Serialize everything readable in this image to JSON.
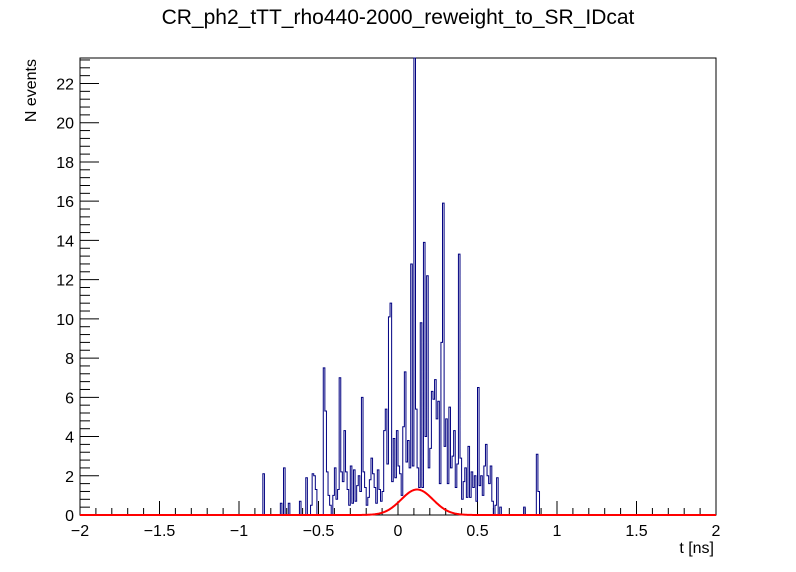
{
  "chart_data": {
    "type": "histogram",
    "title": "CR_ph2_tTT_rho440-2000_reweight_to_SR_IDcat",
    "xlabel": "t [ns]",
    "ylabel": "N events",
    "xlim": [
      -2,
      2
    ],
    "ylim": [
      0,
      23.3
    ],
    "x_ticks": [
      "−2",
      "−1.5",
      "−1",
      "−0.5",
      "0",
      "0.5",
      "1",
      "1.5",
      "2"
    ],
    "y_ticks": [
      "0",
      "2",
      "4",
      "6",
      "8",
      "10",
      "12",
      "14",
      "16",
      "18",
      "20",
      "22"
    ],
    "colors": {
      "histogram": "#000080",
      "fit": "#ff0000"
    },
    "histogram": {
      "name": "",
      "bin_width": 0.01,
      "bins": [
        [
          -0.85,
          2.1
        ],
        [
          -0.74,
          0.6
        ],
        [
          -0.72,
          2.4
        ],
        [
          -0.69,
          0.6
        ],
        [
          -0.62,
          0.7
        ],
        [
          -0.58,
          1.9
        ],
        [
          -0.55,
          0.5
        ],
        [
          -0.54,
          2.1
        ],
        [
          -0.53,
          2.0
        ],
        [
          -0.52,
          1.3
        ],
        [
          -0.47,
          7.5
        ],
        [
          -0.46,
          5.3
        ],
        [
          -0.45,
          2.2
        ],
        [
          -0.44,
          1.0
        ],
        [
          -0.43,
          0.5
        ],
        [
          -0.41,
          1.0
        ],
        [
          -0.4,
          2.4
        ],
        [
          -0.39,
          0.8
        ],
        [
          -0.38,
          1.3
        ],
        [
          -0.37,
          7.0
        ],
        [
          -0.36,
          2.2
        ],
        [
          -0.35,
          1.7
        ],
        [
          -0.34,
          4.3
        ],
        [
          -0.33,
          2.2
        ],
        [
          -0.32,
          1.3
        ],
        [
          -0.31,
          0.5
        ],
        [
          -0.3,
          2.5
        ],
        [
          -0.29,
          0.6
        ],
        [
          -0.28,
          2.3
        ],
        [
          -0.27,
          0.7
        ],
        [
          -0.26,
          1.5
        ],
        [
          -0.25,
          2.0
        ],
        [
          -0.24,
          1.2
        ],
        [
          -0.23,
          6.0
        ],
        [
          -0.22,
          2.2
        ],
        [
          -0.21,
          1.4
        ],
        [
          -0.2,
          0.5
        ],
        [
          -0.19,
          0.9
        ],
        [
          -0.18,
          1.8
        ],
        [
          -0.17,
          2.9
        ],
        [
          -0.16,
          2.1
        ],
        [
          -0.15,
          1.4
        ],
        [
          -0.14,
          0.6
        ],
        [
          -0.13,
          2.3
        ],
        [
          -0.12,
          1.3
        ],
        [
          -0.11,
          0.7
        ],
        [
          -0.1,
          1.2
        ],
        [
          -0.09,
          4.3
        ],
        [
          -0.08,
          5.4
        ],
        [
          -0.07,
          2.6
        ],
        [
          -0.06,
          10.1
        ],
        [
          -0.05,
          10.8
        ],
        [
          -0.04,
          1.7
        ],
        [
          -0.03,
          3.9
        ],
        [
          -0.02,
          1.9
        ],
        [
          -0.01,
          4.3
        ],
        [
          0.0,
          2.5
        ],
        [
          0.01,
          2.1
        ],
        [
          0.02,
          1.0
        ],
        [
          0.03,
          4.5
        ],
        [
          0.04,
          7.3
        ],
        [
          0.05,
          2.7
        ],
        [
          0.06,
          3.8
        ],
        [
          0.07,
          2.4
        ],
        [
          0.08,
          12.8
        ],
        [
          0.09,
          2.5
        ],
        [
          0.1,
          23.3
        ],
        [
          0.11,
          5.4
        ],
        [
          0.12,
          2.4
        ],
        [
          0.13,
          1.4
        ],
        [
          0.14,
          9.8
        ],
        [
          0.15,
          1.4
        ],
        [
          0.16,
          13.9
        ],
        [
          0.17,
          4.0
        ],
        [
          0.18,
          12.2
        ],
        [
          0.19,
          2.4
        ],
        [
          0.2,
          3.4
        ],
        [
          0.21,
          6.3
        ],
        [
          0.22,
          5.9
        ],
        [
          0.23,
          6.9
        ],
        [
          0.24,
          4.9
        ],
        [
          0.25,
          5.8
        ],
        [
          0.26,
          1.6
        ],
        [
          0.27,
          8.8
        ],
        [
          0.28,
          15.9
        ],
        [
          0.29,
          3.5
        ],
        [
          0.3,
          4.9
        ],
        [
          0.31,
          1.6
        ],
        [
          0.32,
          5.5
        ],
        [
          0.33,
          2.4
        ],
        [
          0.34,
          3.0
        ],
        [
          0.35,
          4.3
        ],
        [
          0.36,
          1.4
        ],
        [
          0.37,
          2.6
        ],
        [
          0.38,
          13.3
        ],
        [
          0.39,
          2.9
        ],
        [
          0.4,
          0.8
        ],
        [
          0.41,
          1.7
        ],
        [
          0.42,
          2.4
        ],
        [
          0.43,
          0.9
        ],
        [
          0.44,
          3.5
        ],
        [
          0.45,
          0.9
        ],
        [
          0.46,
          2.2
        ],
        [
          0.47,
          1.4
        ],
        [
          0.48,
          2.0
        ],
        [
          0.49,
          0.7
        ],
        [
          0.5,
          6.5
        ],
        [
          0.51,
          1.5
        ],
        [
          0.52,
          2.0
        ],
        [
          0.53,
          1.0
        ],
        [
          0.54,
          2.5
        ],
        [
          0.55,
          3.6
        ],
        [
          0.56,
          2.0
        ],
        [
          0.57,
          1.6
        ],
        [
          0.58,
          2.5
        ],
        [
          0.59,
          0.7
        ],
        [
          0.61,
          0.5
        ],
        [
          0.62,
          1.9
        ],
        [
          0.64,
          0.4
        ],
        [
          0.79,
          0.4
        ],
        [
          0.87,
          3.1
        ],
        [
          0.88,
          1.2
        ]
      ]
    },
    "fit": {
      "name": "",
      "function": "gaus",
      "amplitude": 1.3,
      "mean": 0.12,
      "sigma": 0.1,
      "range": [
        -2,
        2
      ]
    }
  }
}
